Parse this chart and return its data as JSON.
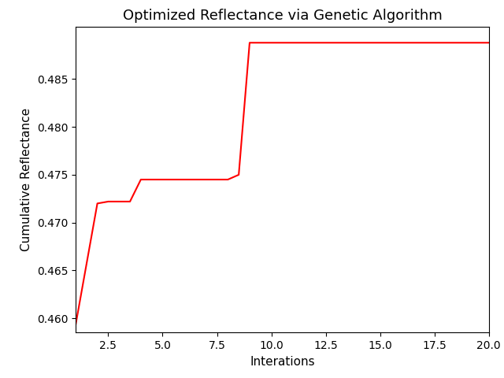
{
  "x": [
    1,
    2,
    2.5,
    3,
    3.5,
    4,
    8,
    8.5,
    9,
    20
  ],
  "y": [
    0.4593,
    0.472,
    0.4722,
    0.4722,
    0.4722,
    0.4745,
    0.4745,
    0.475,
    0.4888,
    0.4888
  ],
  "line_color": "#ff0000",
  "line_width": 1.5,
  "title": "Optimized Reflectance via Genetic Algorithm",
  "xlabel": "Interations",
  "ylabel": "Cumulative Reflectance",
  "xlim": [
    1,
    20
  ],
  "ylim": [
    0.4585,
    0.4905
  ],
  "xticks": [
    2.5,
    5.0,
    7.5,
    10.0,
    12.5,
    15.0,
    17.5,
    20.0
  ],
  "yticks": [
    0.46,
    0.465,
    0.47,
    0.475,
    0.48,
    0.485
  ],
  "background_color": "#ffffff",
  "title_fontsize": 13,
  "label_fontsize": 11,
  "tick_fontsize": 10
}
